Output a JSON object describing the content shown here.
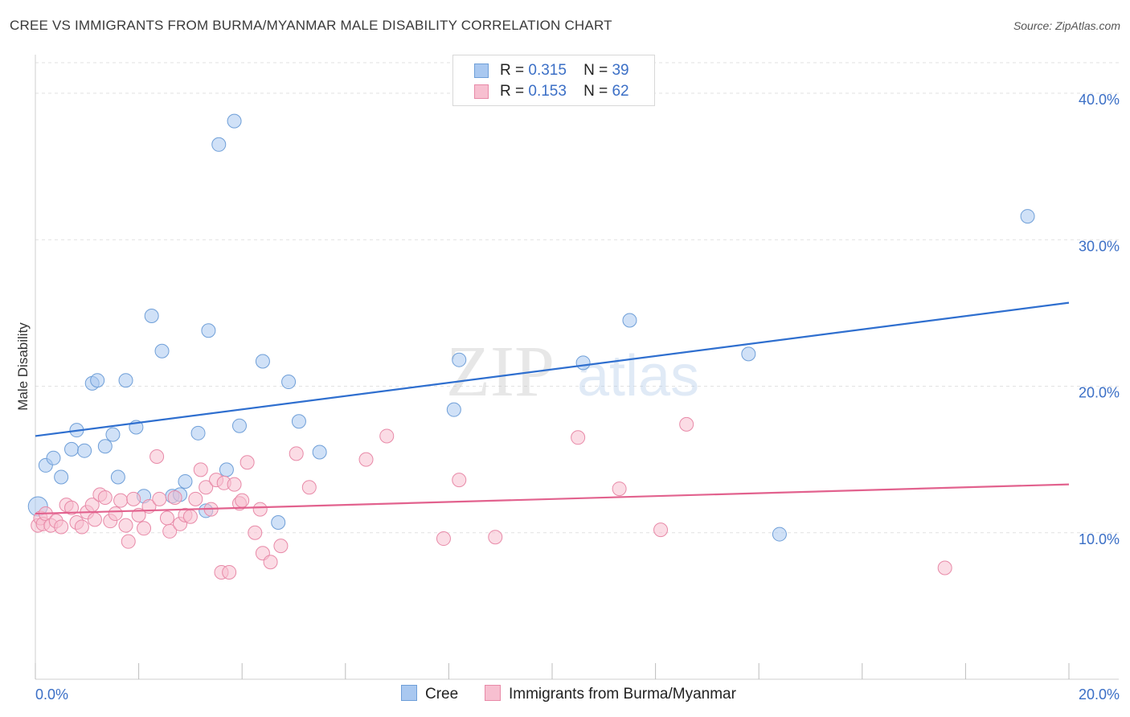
{
  "title": "CREE VS IMMIGRANTS FROM BURMA/MYANMAR MALE DISABILITY CORRELATION CHART",
  "source": "Source: ZipAtlas.com",
  "watermark": {
    "zip": "ZIP",
    "atlas": "atlas"
  },
  "legend": {
    "r_label": "R =",
    "n_label": "N =",
    "rows": [
      {
        "r": "0.315",
        "n": "39",
        "color": "#a9c8f0",
        "border": "#6f9fd8"
      },
      {
        "r": "0.153",
        "n": "62",
        "color": "#f7bfd0",
        "border": "#e88aa8"
      }
    ]
  },
  "bottom_legend": [
    "Cree",
    "Immigrants from Burma/Myanmar"
  ],
  "chart_data": {
    "type": "scatter",
    "xlabel": "",
    "ylabel": "Male Disability",
    "xlim": [
      0,
      20
    ],
    "ylim": [
      0,
      40
    ],
    "x_tick_labels": [
      "0.0%",
      "20.0%"
    ],
    "y_tick_labels": [
      "10.0%",
      "20.0%",
      "30.0%",
      "40.0%"
    ],
    "y_ticks": [
      10,
      20,
      30,
      40
    ],
    "grid": true,
    "series": [
      {
        "name": "Cree",
        "color": "#6f9fd8",
        "fill": "#a9c8f0",
        "line_color": "#2f6fcf",
        "trend": [
          [
            0,
            16.6
          ],
          [
            20,
            25.7
          ]
        ],
        "points": [
          [
            0.05,
            11.8
          ],
          [
            0.2,
            14.6
          ],
          [
            0.35,
            15.1
          ],
          [
            0.5,
            13.8
          ],
          [
            0.7,
            15.7
          ],
          [
            0.8,
            17.0
          ],
          [
            0.95,
            15.6
          ],
          [
            1.1,
            20.2
          ],
          [
            1.2,
            20.4
          ],
          [
            1.35,
            15.9
          ],
          [
            1.5,
            16.7
          ],
          [
            1.6,
            13.8
          ],
          [
            1.75,
            20.4
          ],
          [
            1.95,
            17.2
          ],
          [
            2.1,
            12.5
          ],
          [
            2.25,
            24.8
          ],
          [
            2.45,
            22.4
          ],
          [
            2.65,
            12.5
          ],
          [
            2.8,
            12.6
          ],
          [
            2.9,
            13.5
          ],
          [
            3.15,
            16.8
          ],
          [
            3.3,
            11.5
          ],
          [
            3.35,
            23.8
          ],
          [
            3.55,
            36.5
          ],
          [
            3.7,
            14.3
          ],
          [
            3.85,
            38.1
          ],
          [
            3.95,
            17.3
          ],
          [
            4.4,
            21.7
          ],
          [
            4.7,
            10.7
          ],
          [
            4.9,
            20.3
          ],
          [
            5.1,
            17.6
          ],
          [
            5.5,
            15.5
          ],
          [
            8.1,
            18.4
          ],
          [
            8.2,
            21.8
          ],
          [
            10.6,
            21.6
          ],
          [
            11.5,
            24.5
          ],
          [
            13.8,
            22.2
          ],
          [
            14.4,
            9.9
          ],
          [
            19.2,
            31.6
          ]
        ]
      },
      {
        "name": "Immigrants from Burma/Myanmar",
        "color": "#e88aa8",
        "fill": "#f7bfd0",
        "line_color": "#e2628e",
        "trend": [
          [
            0,
            11.3
          ],
          [
            20,
            13.3
          ]
        ],
        "points": [
          [
            0.05,
            10.5
          ],
          [
            0.1,
            11.0
          ],
          [
            0.15,
            10.6
          ],
          [
            0.2,
            11.3
          ],
          [
            0.3,
            10.5
          ],
          [
            0.4,
            10.8
          ],
          [
            0.5,
            10.4
          ],
          [
            0.6,
            11.9
          ],
          [
            0.7,
            11.7
          ],
          [
            0.8,
            10.7
          ],
          [
            0.9,
            10.4
          ],
          [
            1.0,
            11.4
          ],
          [
            1.1,
            11.9
          ],
          [
            1.15,
            10.9
          ],
          [
            1.25,
            12.6
          ],
          [
            1.35,
            12.4
          ],
          [
            1.45,
            10.8
          ],
          [
            1.55,
            11.3
          ],
          [
            1.65,
            12.2
          ],
          [
            1.75,
            10.5
          ],
          [
            1.8,
            9.4
          ],
          [
            1.9,
            12.3
          ],
          [
            2.0,
            11.2
          ],
          [
            2.1,
            10.3
          ],
          [
            2.2,
            11.8
          ],
          [
            2.35,
            15.2
          ],
          [
            2.4,
            12.3
          ],
          [
            2.55,
            11.0
          ],
          [
            2.6,
            10.1
          ],
          [
            2.7,
            12.4
          ],
          [
            2.8,
            10.6
          ],
          [
            2.9,
            11.2
          ],
          [
            3.0,
            11.1
          ],
          [
            3.1,
            12.3
          ],
          [
            3.2,
            14.3
          ],
          [
            3.3,
            13.1
          ],
          [
            3.4,
            11.6
          ],
          [
            3.5,
            13.6
          ],
          [
            3.6,
            7.3
          ],
          [
            3.65,
            13.4
          ],
          [
            3.75,
            7.3
          ],
          [
            3.85,
            13.3
          ],
          [
            3.95,
            12.0
          ],
          [
            4.0,
            12.2
          ],
          [
            4.1,
            14.8
          ],
          [
            4.25,
            10.0
          ],
          [
            4.35,
            11.6
          ],
          [
            4.4,
            8.6
          ],
          [
            4.55,
            8.0
          ],
          [
            4.75,
            9.1
          ],
          [
            5.05,
            15.4
          ],
          [
            5.3,
            13.1
          ],
          [
            6.4,
            15.0
          ],
          [
            6.8,
            16.6
          ],
          [
            7.9,
            9.6
          ],
          [
            8.2,
            13.6
          ],
          [
            8.9,
            9.7
          ],
          [
            10.5,
            16.5
          ],
          [
            11.3,
            13.0
          ],
          [
            12.1,
            10.2
          ],
          [
            12.6,
            17.4
          ],
          [
            17.6,
            7.6
          ]
        ]
      }
    ]
  }
}
